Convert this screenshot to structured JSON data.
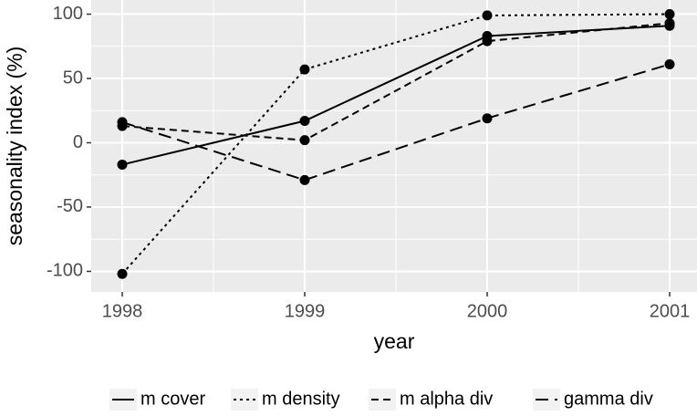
{
  "chart_data": {
    "type": "line",
    "x_label": "year",
    "y_label": "seasonality index (%)",
    "x": [
      1998,
      1999,
      2000,
      2001
    ],
    "xlim": [
      1997.83,
      2001.15
    ],
    "xticks": [
      1998,
      1999,
      2000,
      2001
    ],
    "x_minor_ticks": [
      1998.5,
      1999.5,
      2000.5
    ],
    "ylim": [
      -116,
      111
    ],
    "yticks": [
      -100,
      -50,
      0,
      50,
      100
    ],
    "y_minor_ticks": [
      -75,
      -25,
      25,
      75
    ],
    "grid": true,
    "legend": "bottom",
    "series": [
      {
        "name": "m cover",
        "color": "#000000",
        "dash": "none",
        "values": [
          -17,
          17,
          83,
          91
        ]
      },
      {
        "name": "m density",
        "color": "#000000",
        "dash": "3,4",
        "values": [
          -102,
          57,
          99,
          100
        ]
      },
      {
        "name": "m alpha div",
        "color": "#000000",
        "dash": "8,5",
        "values": [
          13,
          2,
          79,
          93
        ]
      },
      {
        "name": "gamma div",
        "color": "#000000",
        "dash": "14,7",
        "values": [
          16,
          -29,
          19,
          61
        ]
      }
    ]
  }
}
